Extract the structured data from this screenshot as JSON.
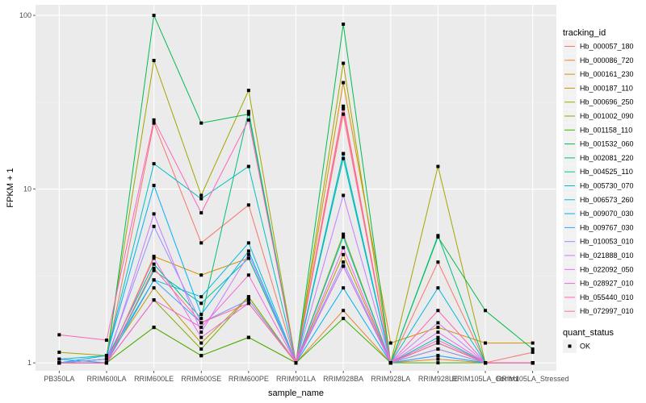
{
  "chart_data": {
    "type": "line",
    "xlabel": "sample_name",
    "ylabel": "FPKM + 1",
    "y_scale": "log10",
    "ylim": [
      0.9,
      115
    ],
    "y_ticks": [
      {
        "value": 1,
        "label": "1"
      },
      {
        "value": 10,
        "label": "10"
      },
      {
        "value": 100,
        "label": "100"
      }
    ],
    "panel_background": "#ebebeb",
    "grid": true,
    "legend_position": "right",
    "categories": [
      "PB350LA",
      "RRIM600LA",
      "RRIM600LE",
      "RRIM600SE",
      "RRIM600PE",
      "RRIM901LA",
      "RRIM928BA",
      "RRIM928LA",
      "RRIM928LE",
      "RRIM105LA_Control",
      "RRIM105LA_Stressed"
    ],
    "color_legend_title": "tracking_id",
    "shape_legend": {
      "title": "quant_status",
      "items": [
        {
          "label": "OK",
          "shape": "square"
        }
      ]
    },
    "series": [
      {
        "name": "Hb_000057_180",
        "color": "#F8766D",
        "values": [
          1.0,
          1.05,
          24.0,
          4.9,
          8.1,
          1.0,
          27.0,
          1.0,
          3.8,
          1.0,
          1.15
        ]
      },
      {
        "name": "Hb_000086_720",
        "color": "#EA8331",
        "values": [
          1.0,
          1.0,
          1.6,
          1.1,
          1.4,
          1.0,
          2.0,
          1.0,
          1.05,
          1.0,
          1.0
        ]
      },
      {
        "name": "Hb_000161_230",
        "color": "#D89000",
        "values": [
          1.0,
          1.0,
          4.1,
          3.2,
          4.0,
          1.0,
          41.0,
          1.3,
          1.6,
          1.3,
          1.3
        ]
      },
      {
        "name": "Hb_000187_110",
        "color": "#C09B00",
        "values": [
          1.0,
          1.05,
          2.7,
          1.3,
          2.4,
          1.0,
          4.2,
          1.0,
          1.2,
          1.0,
          1.0
        ]
      },
      {
        "name": "Hb_000696_250",
        "color": "#A3A500",
        "values": [
          1.15,
          1.1,
          55.0,
          9.2,
          37.0,
          1.0,
          53.0,
          1.0,
          13.5,
          1.0,
          1.0
        ]
      },
      {
        "name": "Hb_001002_090",
        "color": "#7CAE00",
        "values": [
          1.0,
          1.0,
          2.3,
          1.2,
          2.4,
          1.0,
          5.5,
          1.0,
          1.3,
          1.0,
          1.0
        ]
      },
      {
        "name": "Hb_001158_110",
        "color": "#39B600",
        "values": [
          1.0,
          1.0,
          1.6,
          1.1,
          1.4,
          1.0,
          1.8,
          1.0,
          1.0,
          1.0,
          1.0
        ]
      },
      {
        "name": "Hb_001532_060",
        "color": "#00BB4E",
        "values": [
          1.0,
          1.0,
          100.0,
          24.0,
          27.0,
          1.0,
          89.0,
          1.0,
          5.3,
          2.0,
          1.2
        ]
      },
      {
        "name": "Hb_002081_220",
        "color": "#00BF7D",
        "values": [
          1.0,
          1.05,
          3.7,
          1.8,
          28.0,
          1.0,
          16.0,
          1.0,
          5.4,
          1.0,
          1.0
        ]
      },
      {
        "name": "Hb_004525_110",
        "color": "#00C1A3",
        "values": [
          1.0,
          1.0,
          3.4,
          2.2,
          4.0,
          1.0,
          15.0,
          1.0,
          1.4,
          1.0,
          1.0
        ]
      },
      {
        "name": "Hb_005730_070",
        "color": "#00BFC4",
        "values": [
          1.05,
          1.1,
          14.0,
          8.8,
          13.5,
          1.0,
          5.3,
          1.0,
          1.3,
          1.0,
          1.0
        ]
      },
      {
        "name": "Hb_006573_260",
        "color": "#00BAE0",
        "values": [
          1.0,
          1.05,
          3.0,
          2.4,
          4.9,
          1.0,
          16.0,
          1.0,
          2.7,
          1.0,
          1.0
        ]
      },
      {
        "name": "Hb_009070_030",
        "color": "#00B0F6",
        "values": [
          1.0,
          1.1,
          10.5,
          1.9,
          4.4,
          1.0,
          2.7,
          1.0,
          1.1,
          1.0,
          1.0
        ]
      },
      {
        "name": "Hb_009767_030",
        "color": "#35A2FF",
        "values": [
          1.05,
          1.0,
          3.0,
          1.7,
          2.3,
          1.0,
          3.6,
          1.0,
          1.1,
          1.0,
          1.0
        ]
      },
      {
        "name": "Hb_010053_010",
        "color": "#9590FF",
        "values": [
          1.0,
          1.05,
          6.1,
          1.7,
          2.3,
          1.0,
          3.8,
          1.0,
          1.2,
          1.0,
          1.0
        ]
      },
      {
        "name": "Hb_021888_010",
        "color": "#C77CFF",
        "values": [
          1.0,
          1.0,
          7.2,
          1.5,
          4.2,
          1.0,
          9.2,
          1.0,
          1.7,
          1.0,
          1.0
        ]
      },
      {
        "name": "Hb_022092_050",
        "color": "#E76BF3",
        "values": [
          1.0,
          1.0,
          4.0,
          1.4,
          2.2,
          1.0,
          3.6,
          1.0,
          1.5,
          1.0,
          1.0
        ]
      },
      {
        "name": "Hb_028927_010",
        "color": "#FA62DB",
        "values": [
          1.0,
          1.0,
          2.3,
          1.6,
          3.2,
          1.0,
          4.6,
          1.0,
          1.35,
          1.0,
          1.0
        ]
      },
      {
        "name": "Hb_055440_010",
        "color": "#FF62BC",
        "values": [
          1.45,
          1.35,
          25.0,
          7.3,
          25.0,
          1.0,
          29.0,
          1.0,
          2.0,
          1.0,
          1.0
        ]
      },
      {
        "name": "Hb_072997_010",
        "color": "#FF6C91",
        "values": [
          1.0,
          1.0,
          3.5,
          1.7,
          2.2,
          1.0,
          30.0,
          1.0,
          1.3,
          1.0,
          1.0
        ]
      }
    ]
  }
}
